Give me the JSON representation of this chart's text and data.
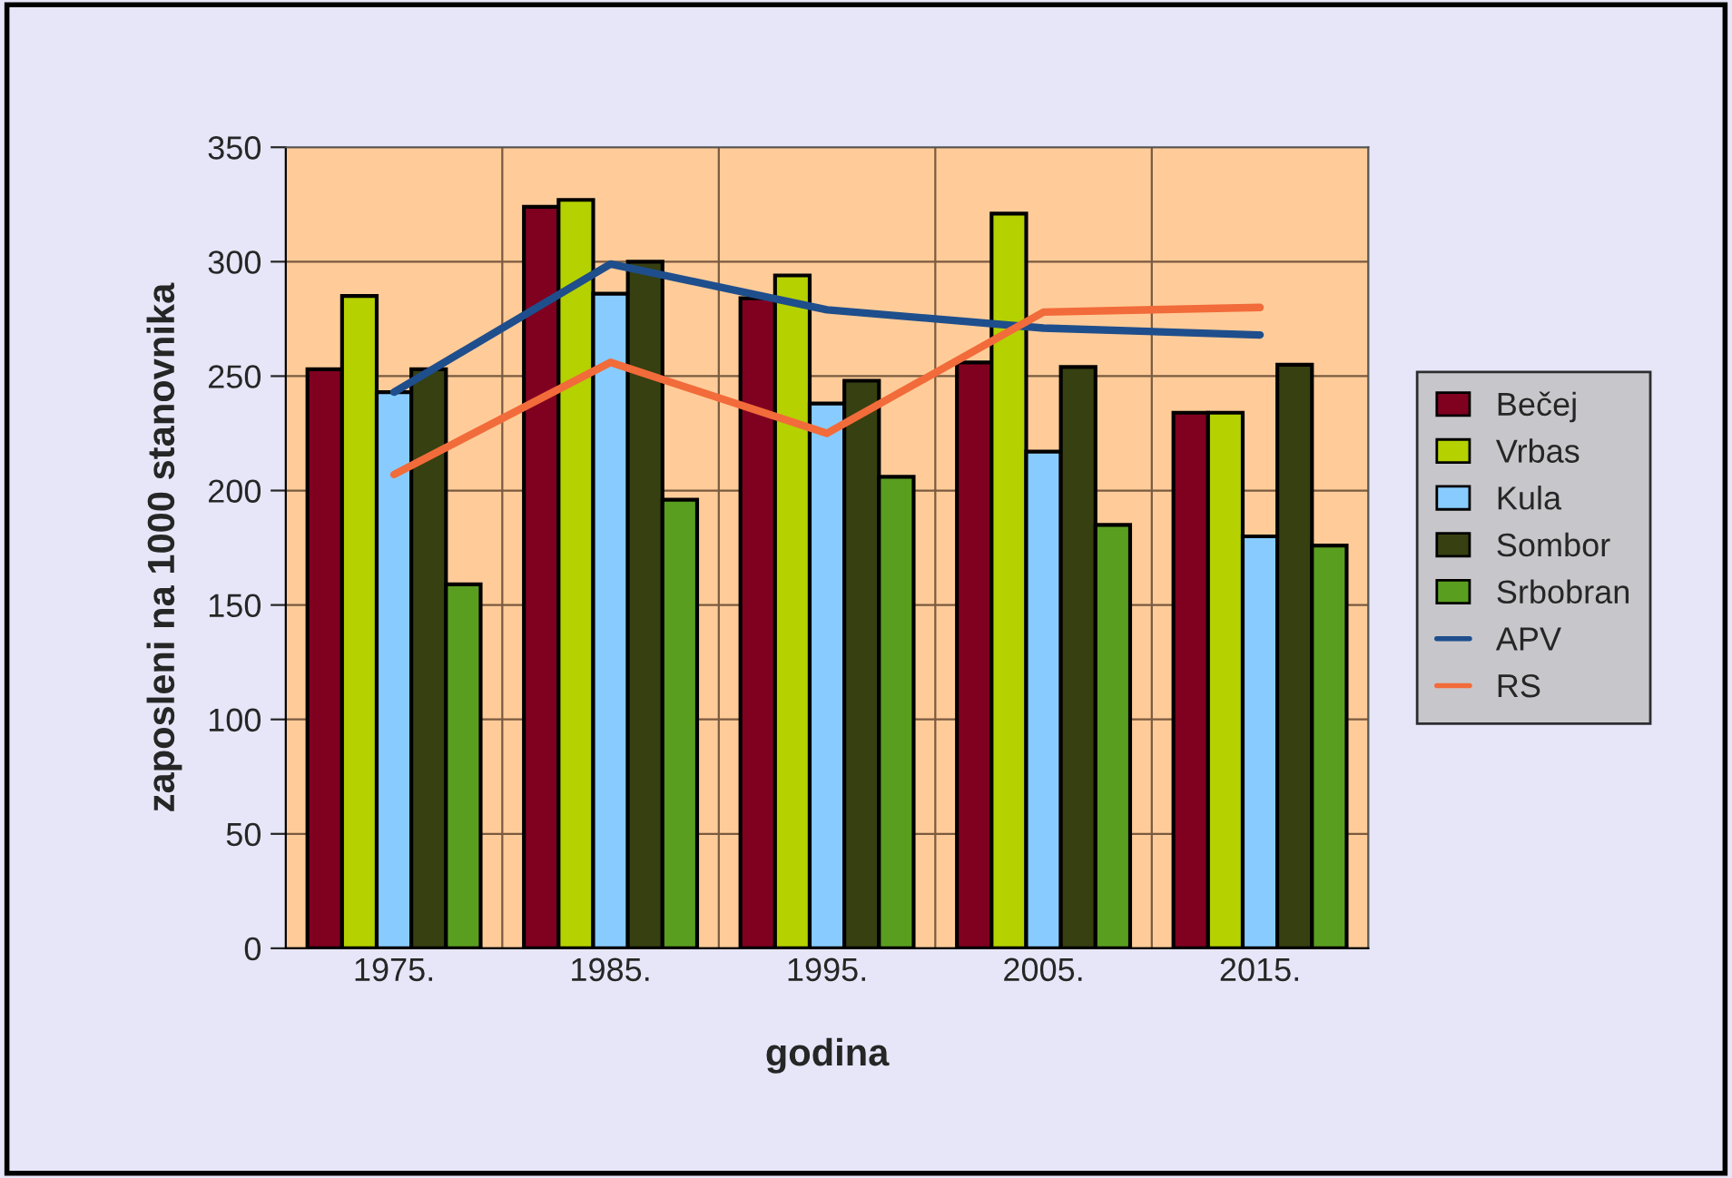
{
  "chart_data": {
    "type": "bar",
    "xlabel": "godina",
    "ylabel": "zaposleni na 1000 stanovnika",
    "categories": [
      "1975.",
      "1985.",
      "1995.",
      "2005.",
      "2015."
    ],
    "series": [
      {
        "name": "Bečej",
        "color": "#800020",
        "values": [
          253,
          324,
          284,
          256,
          234
        ]
      },
      {
        "name": "Vrbas",
        "color": "#b5d100",
        "values": [
          285,
          327,
          294,
          321,
          234
        ]
      },
      {
        "name": "Kula",
        "color": "#88ccff",
        "values": [
          243,
          286,
          238,
          217,
          180
        ]
      },
      {
        "name": "Sombor",
        "color": "#364010",
        "values": [
          253,
          300,
          248,
          254,
          255
        ]
      },
      {
        "name": "Srbobran",
        "color": "#5a9e20",
        "values": [
          159,
          196,
          206,
          185,
          176
        ]
      },
      {
        "name": "APV",
        "type": "line",
        "color": "#1f4e8c",
        "values": [
          243,
          299,
          279,
          271,
          268
        ]
      },
      {
        "name": "RS",
        "type": "line",
        "color": "#f26b3a",
        "values": [
          207,
          256,
          225,
          278,
          280
        ]
      }
    ],
    "ylim": [
      0,
      350
    ],
    "yticks": [
      0,
      50,
      100,
      150,
      200,
      250,
      300,
      350
    ],
    "grid": true,
    "legend": "right"
  }
}
